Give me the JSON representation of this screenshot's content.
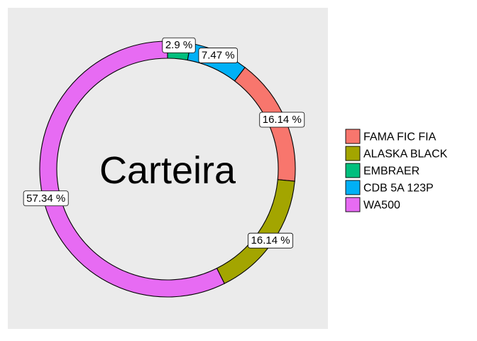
{
  "chart_data": {
    "type": "pie",
    "style": "donut",
    "center_label": "Carteira",
    "start": "top",
    "direction": "clockwise",
    "slices": [
      {
        "name": "EMBRAER",
        "value": 2.9,
        "label": "2.9 %",
        "color": "#00BF7D"
      },
      {
        "name": "CDB 5A 123P",
        "value": 7.47,
        "label": "7.47 %",
        "color": "#00B0F6"
      },
      {
        "name": "FAMA FIC FIA",
        "value": 16.14,
        "label": "16.14 %",
        "color": "#F8766D"
      },
      {
        "name": "ALASKA BLACK",
        "value": 16.14,
        "label": "16.14 %",
        "color": "#A3A500"
      },
      {
        "name": "WA500",
        "value": 57.34,
        "label": "57.34 %",
        "color": "#E76BF3"
      }
    ],
    "legend": {
      "placement": "right",
      "entries": [
        {
          "name": "FAMA FIC FIA",
          "color": "#F8766D"
        },
        {
          "name": "ALASKA BLACK",
          "color": "#A3A500"
        },
        {
          "name": "EMBRAER",
          "color": "#00BF7D"
        },
        {
          "name": "CDB 5A 123P",
          "color": "#00B0F6"
        },
        {
          "name": "WA500",
          "color": "#E76BF3"
        }
      ]
    },
    "panel_background": "#EBEBEB",
    "grid": false
  }
}
